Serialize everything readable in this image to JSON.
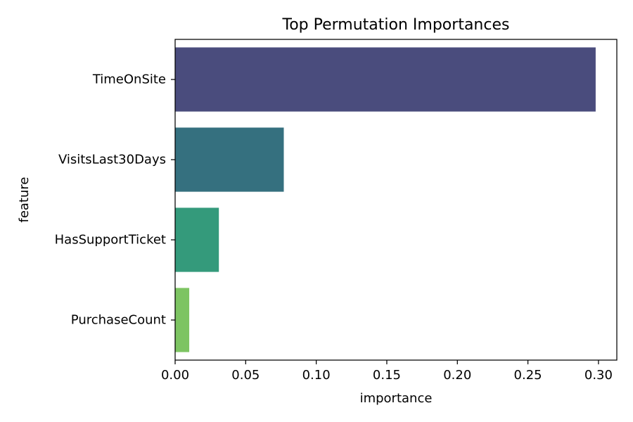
{
  "chart_data": {
    "type": "bar",
    "orientation": "horizontal",
    "title": "Top Permutation Importances",
    "xlabel": "importance",
    "ylabel": "feature",
    "categories": [
      "TimeOnSite",
      "VisitsLast30Days",
      "HasSupportTicket",
      "PurchaseCount"
    ],
    "values": [
      0.298,
      0.077,
      0.031,
      0.01
    ],
    "colors": [
      "#4a4c7d",
      "#35707f",
      "#349a7b",
      "#7dc462"
    ],
    "xlim": [
      0.0,
      0.313
    ],
    "xticks": [
      0.0,
      0.05,
      0.1,
      0.15,
      0.2,
      0.25,
      0.3
    ],
    "xtick_labels": [
      "0.00",
      "0.05",
      "0.10",
      "0.15",
      "0.20",
      "0.25",
      "0.30"
    ],
    "grid": false,
    "legend": "none"
  }
}
